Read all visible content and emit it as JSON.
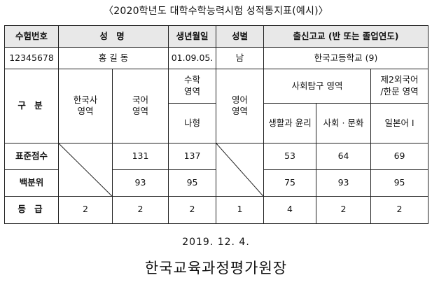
{
  "title": "〈2020학년도 대학수학능력시험 성적통지표(예시)〉",
  "header": {
    "exam_number": "수험번호",
    "name": "성 명",
    "birth_date": "생년월일",
    "gender": "성별",
    "school": "출신고교 (반 또는 졸업연도)"
  },
  "student": {
    "exam_number": "12345678",
    "name": "홍 길 동",
    "birth_date": "01.09.05.",
    "gender": "남",
    "school": "한국고등학교 (9)"
  },
  "subjects": {
    "category": "구 분",
    "korean_history": "한국사\n영역",
    "korean": "국어\n영역",
    "math": "수학\n영역",
    "math_type": "나형",
    "english": "영어\n영역",
    "social": "사회탐구 영역",
    "social_1": "생활과 윤리",
    "social_2": "사회 · 문화",
    "foreign": "제2외국어\n/한문 영역",
    "foreign_sub": "일본어 Ⅰ"
  },
  "rows": {
    "standard_score": {
      "label": "표준점수",
      "korean": "131",
      "math": "137",
      "social_1": "53",
      "social_2": "64",
      "foreign": "69"
    },
    "percentile": {
      "label": "백분위",
      "korean": "93",
      "math": "95",
      "social_1": "75",
      "social_2": "93",
      "foreign": "95"
    },
    "grade": {
      "label": "등 급",
      "korean_history": "2",
      "korean": "2",
      "math": "2",
      "english": "1",
      "social_1": "4",
      "social_2": "2",
      "foreign": "2"
    }
  },
  "footer": {
    "date": "2019. 12. 4.",
    "issuer": "한국교육과정평가원장"
  }
}
